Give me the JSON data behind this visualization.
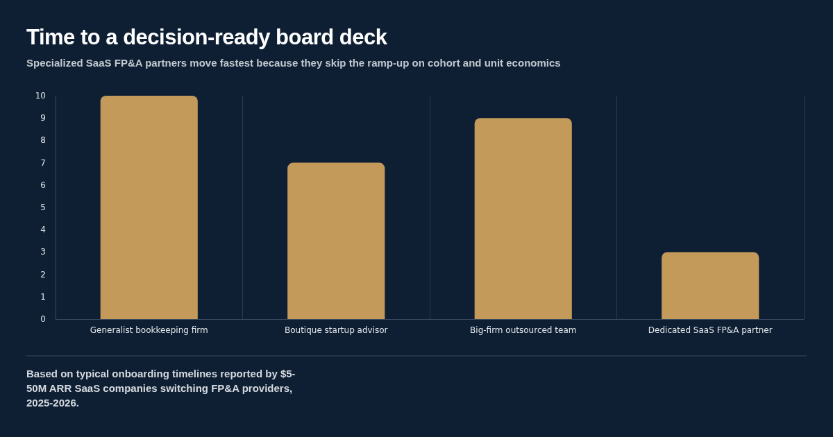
{
  "chart_data": {
    "type": "bar",
    "title": "Time to a decision-ready board deck",
    "subtitle": "Specialized SaaS FP&A partners move fastest because they skip the ramp-up on cohort and unit economics",
    "categories": [
      "Generalist bookkeeping firm",
      "Boutique startup advisor",
      "Big-firm outsourced team",
      "Dedicated SaaS FP&A partner"
    ],
    "values": [
      10,
      7,
      9,
      3
    ],
    "color": "#c49a5a",
    "ylim": [
      0,
      10
    ],
    "yticks": [
      0,
      1,
      2,
      3,
      4,
      5,
      6,
      7,
      8,
      9,
      10
    ],
    "grid": "x",
    "annotations": [
      "Based on typical onboarding timelines reported by $5-50M ARR SaaS companies switching FP&A providers, 2025-2026."
    ]
  }
}
